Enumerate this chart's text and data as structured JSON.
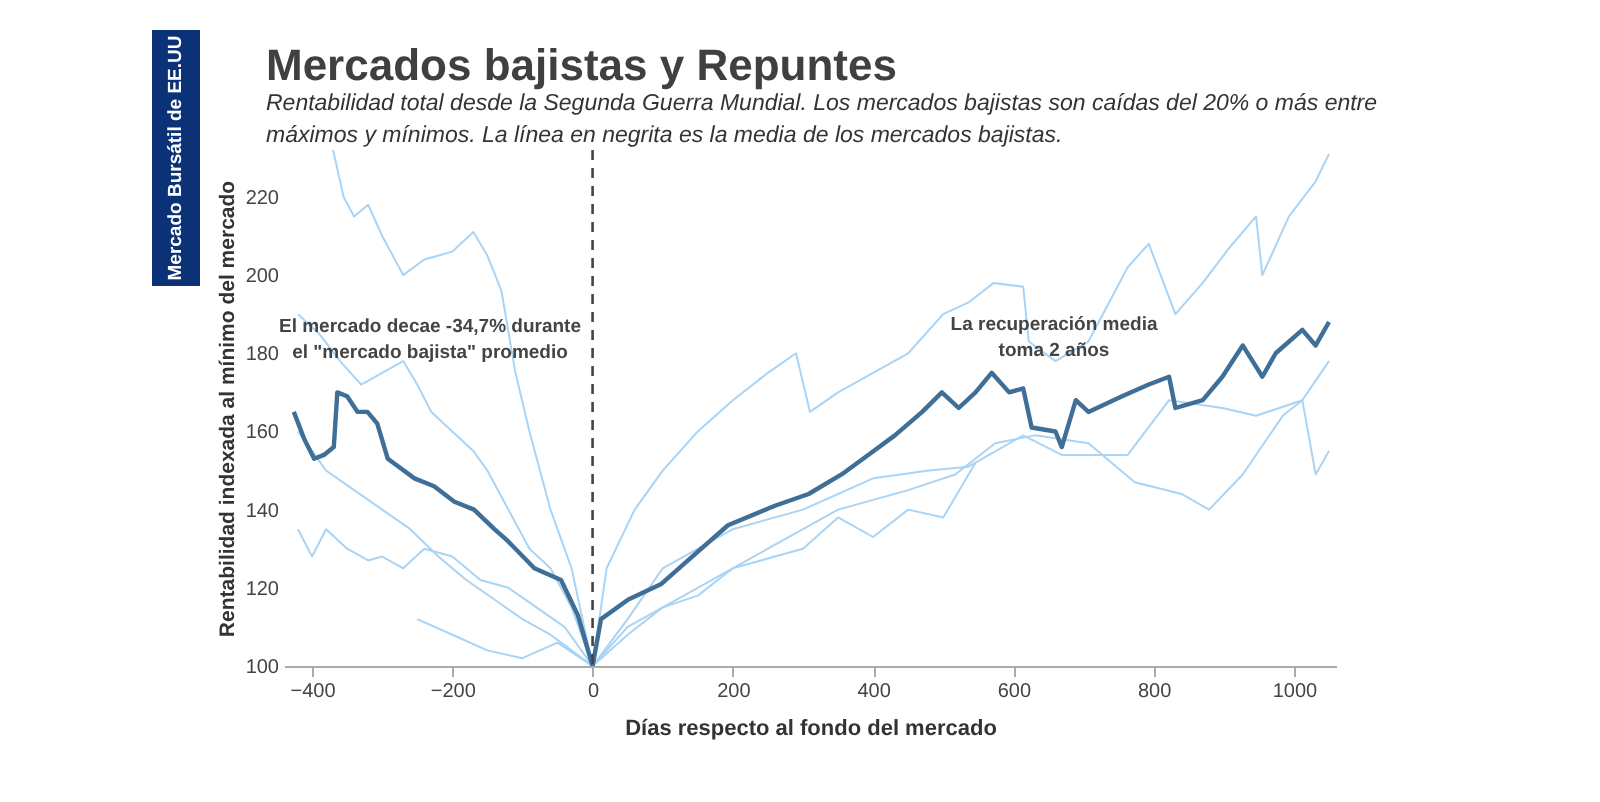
{
  "chart_data": {
    "type": "line",
    "title": "Mercados bajistas y Repuntes",
    "subtitle": "Rentabilidad total desde la Segunda Guerra Mundial. Los mercados bajistas son caídas del 20% o más entre máximos y mínimos. La línea en negrita es la media de los mercados bajistas.",
    "xlabel": "Días respecto al fondo del mercado",
    "ylabel": "Rentabilidad indexada al mínimo del mercado",
    "annotations": [
      "El mercado decae -34,7% durante\nel \"mercado bajista\" promedio",
      "La recuperación media\ntoma 2 años",
      "Mercado Bursátil de EE.UU"
    ],
    "xlim": [
      -440,
      1060
    ],
    "ylim": [
      100,
      232
    ],
    "xticks": [
      -400,
      -200,
      0,
      200,
      400,
      600,
      800,
      1000
    ],
    "yticks": [
      100,
      120,
      140,
      160,
      180,
      200,
      220
    ],
    "grid": false,
    "legend": false,
    "line_style": "solid",
    "ref_lines": [
      {
        "axis": "x",
        "value": 0,
        "color": "#444444",
        "line_style": "dashed"
      }
    ],
    "series": [
      {
        "color": "#a9d4f5",
        "x": [
          -370,
          -355,
          -340,
          -320,
          -300,
          -270,
          -240,
          -200,
          -170,
          -150,
          -130,
          -110,
          -90,
          -60,
          -30,
          0,
          20,
          60,
          100,
          150,
          200,
          250,
          290,
          310,
          350,
          400,
          450,
          500,
          536,
          572,
          614,
          622,
          660,
          707,
          763,
          793,
          831,
          870,
          908,
          946,
          955,
          993,
          1031,
          1050
        ],
        "values": [
          232,
          220,
          215,
          218,
          210,
          200,
          204,
          206,
          211,
          205,
          196,
          175,
          160,
          140,
          125,
          100,
          125,
          140,
          150,
          160,
          168,
          175,
          180,
          165,
          170,
          175,
          180,
          190,
          193,
          198,
          197,
          183,
          178,
          183,
          202,
          208,
          190,
          198,
          207,
          215,
          200,
          215,
          224,
          231
        ]
      },
      {
        "color": "#a9d4f5",
        "x": [
          -420,
          -390,
          -360,
          -330,
          -300,
          -270,
          -250,
          -230,
          -200,
          -170,
          -150,
          -120,
          -90,
          -60,
          -30,
          0,
          50,
          100,
          200,
          300,
          400,
          480,
          536,
          614,
          669,
          763,
          822,
          898,
          946,
          1012,
          1050
        ],
        "values": [
          190,
          185,
          178,
          172,
          175,
          178,
          172,
          165,
          160,
          155,
          150,
          140,
          130,
          125,
          115,
          100,
          112,
          125,
          135,
          140,
          148,
          150,
          151,
          159,
          154,
          154,
          168,
          166,
          164,
          168,
          178
        ]
      },
      {
        "color": "#a9d4f5",
        "x": [
          -420,
          -400,
          -380,
          -350,
          -320,
          -300,
          -270,
          -240,
          -200,
          -160,
          -120,
          -80,
          -40,
          0,
          50,
          100,
          150,
          200,
          260,
          300,
          350,
          400,
          450,
          500,
          546
        ],
        "values": [
          135,
          128,
          135,
          130,
          127,
          128,
          125,
          130,
          128,
          122,
          120,
          115,
          110,
          100,
          108,
          115,
          118,
          125,
          128,
          130,
          138,
          133,
          140,
          138,
          152
        ]
      },
      {
        "color": "#a9d4f5",
        "x": [
          -420,
          -380,
          -340,
          -300,
          -260,
          -220,
          -180,
          -140,
          -100,
          -60,
          -30,
          0,
          50,
          150,
          250,
          350,
          450,
          517,
          574,
          631,
          707,
          773,
          840,
          879,
          927,
          984,
          1012,
          1031,
          1050
        ],
        "values": [
          160,
          150,
          145,
          140,
          135,
          128,
          122,
          117,
          112,
          108,
          104,
          100,
          110,
          120,
          130,
          140,
          145,
          149,
          157,
          159,
          157,
          147,
          144,
          140,
          149,
          164,
          168,
          149,
          155
        ]
      },
      {
        "color": "#a9d4f5",
        "x": [
          -250,
          -200,
          -150,
          -100,
          -50,
          0
        ],
        "values": [
          112,
          108,
          104,
          102,
          106,
          100
        ]
      },
      {
        "color": "#3f6e96",
        "x": [
          -426,
          -411,
          -397,
          -383,
          -369,
          -364,
          -350,
          -335,
          -321,
          -307,
          -292,
          -254,
          -226,
          -197,
          -169,
          -140,
          -121,
          -83,
          -45,
          -21,
          0,
          12,
          51,
          98,
          136,
          193,
          260,
          308,
          355,
          393,
          431,
          470,
          498,
          522,
          546,
          569,
          594,
          614,
          626,
          660,
          669,
          689,
          707,
          755,
          793,
          822,
          831,
          870,
          898,
          927,
          955,
          974,
          1012,
          1031,
          1050
        ],
        "values": [
          165,
          158,
          153,
          154,
          156,
          170,
          169,
          165,
          165,
          162,
          153,
          148,
          146,
          142,
          140,
          135,
          132,
          125,
          122,
          113,
          100,
          112,
          117,
          121,
          127,
          136,
          141,
          144,
          149,
          154,
          159,
          165,
          170,
          166,
          170,
          175,
          170,
          171,
          161,
          160,
          156,
          168,
          165,
          169,
          172,
          174,
          166,
          168,
          174,
          182,
          174,
          180,
          186,
          182,
          188
        ]
      }
    ]
  }
}
